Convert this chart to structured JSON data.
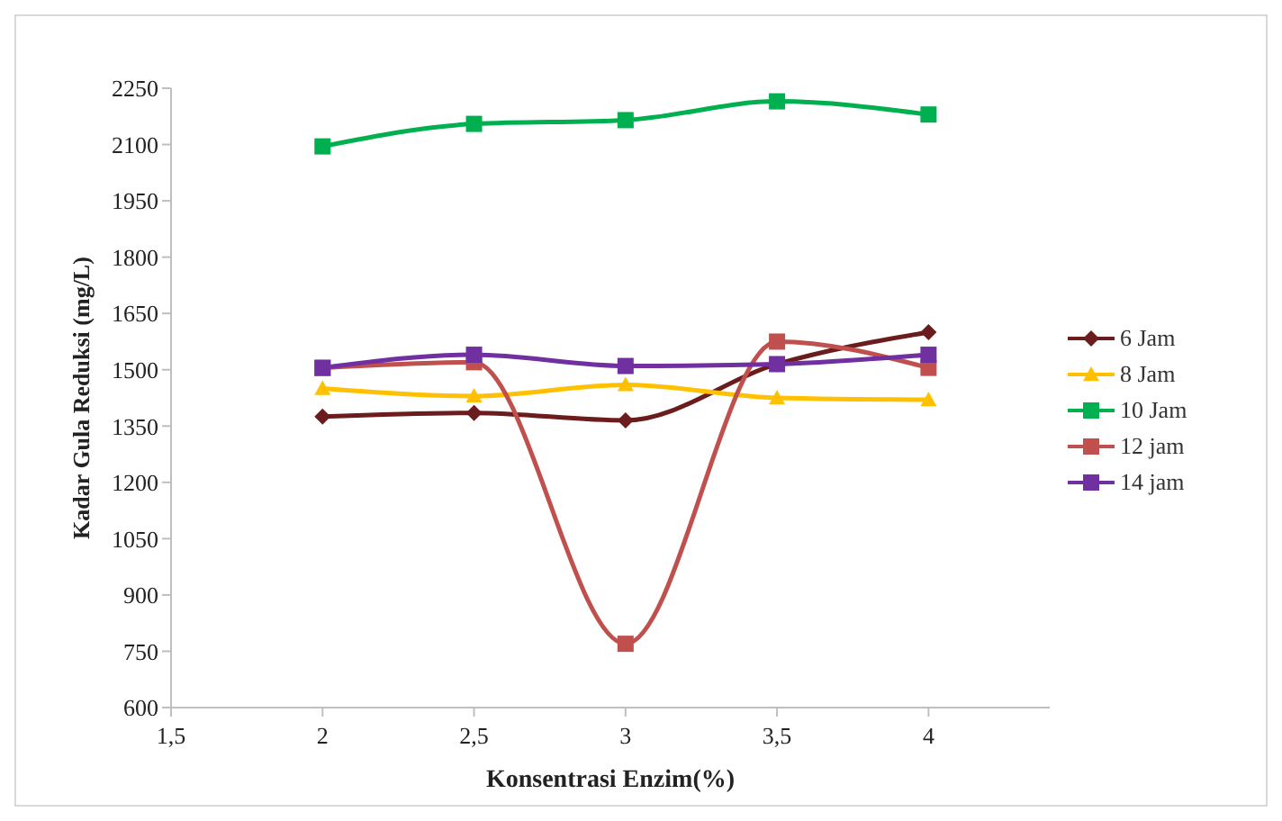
{
  "chart_data": {
    "type": "line",
    "xlabel": "Konsentrasi Enzim(%)",
    "ylabel": "Kadar Gula Reduksi (mg/L)",
    "x": [
      2,
      2.5,
      3,
      3.5,
      4
    ],
    "xlim": [
      1.5,
      4.4
    ],
    "xticks": [
      {
        "value": 1.5,
        "label": "1,5"
      },
      2,
      {
        "value": 2.5,
        "label": "2,5"
      },
      3,
      {
        "value": 3.5,
        "label": "3,5"
      },
      4
    ],
    "ylim": [
      600,
      2250
    ],
    "yticks": [
      600,
      750,
      900,
      1050,
      1200,
      1350,
      1500,
      1650,
      1800,
      1950,
      2100,
      2250
    ],
    "grid": false,
    "legend": "right",
    "line_style": "solid",
    "series": [
      {
        "name": "6 Jam",
        "color": "#6b1c1c",
        "marker": "diamond",
        "values": [
          1375,
          1385,
          1365,
          1515,
          1600
        ]
      },
      {
        "name": "8 Jam",
        "color": "#ffc000",
        "marker": "triangle",
        "values": [
          1450,
          1430,
          1460,
          1425,
          1420
        ]
      },
      {
        "name": "10 Jam",
        "color": "#00b050",
        "marker": "square",
        "values": [
          2095,
          2155,
          2165,
          2215,
          2180
        ]
      },
      {
        "name": "12 jam",
        "color": "#c0504d",
        "marker": "square",
        "values": [
          1505,
          1520,
          770,
          1575,
          1505
        ]
      },
      {
        "name": "14 jam",
        "color": "#7030a0",
        "marker": "square",
        "values": [
          1505,
          1540,
          1510,
          1515,
          1540
        ]
      }
    ]
  }
}
